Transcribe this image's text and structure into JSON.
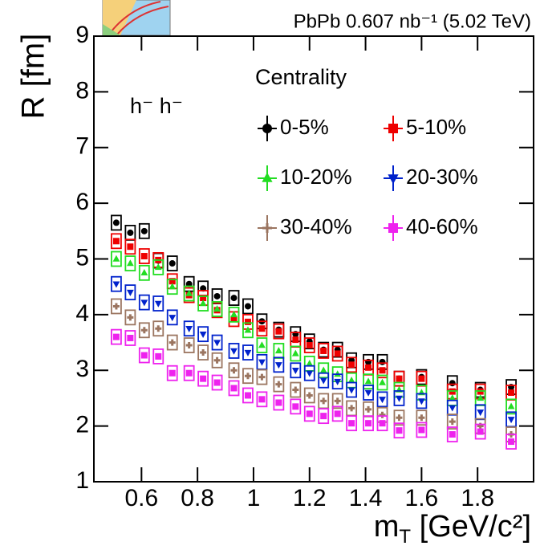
{
  "chart_data": {
    "type": "scatter",
    "header": "PbPb 0.607 nb⁻¹ (5.02 TeV)",
    "annotation": "h⁻ h⁻",
    "y_label": "R [fm]",
    "x_label": {
      "main": "m",
      "sub": "T",
      "rest": " [GeV/c²]"
    },
    "legend_title": "Centrality",
    "x": [
      0.51,
      0.56,
      0.61,
      0.66,
      0.71,
      0.77,
      0.82,
      0.87,
      0.93,
      0.98,
      1.03,
      1.09,
      1.15,
      1.2,
      1.25,
      1.3,
      1.35,
      1.41,
      1.46,
      1.52,
      1.6,
      1.71,
      1.81,
      1.92
    ],
    "series": [
      {
        "name": "0-5%",
        "color": "#000000",
        "marker": "circle",
        "values": [
          5.65,
          5.47,
          5.5,
          4.97,
          4.92,
          4.55,
          4.47,
          4.33,
          4.3,
          4.15,
          3.88,
          3.73,
          3.65,
          3.52,
          3.37,
          3.37,
          3.18,
          3.15,
          3.15,
          2.85,
          2.88,
          2.77,
          2.65,
          2.7
        ]
      },
      {
        "name": "5-10%",
        "color": "#ee0000",
        "marker": "square",
        "values": [
          5.32,
          5.22,
          5.05,
          4.98,
          4.6,
          4.35,
          4.3,
          4.08,
          3.92,
          3.87,
          3.75,
          3.7,
          3.55,
          3.45,
          3.35,
          3.3,
          3.1,
          3.05,
          3.0,
          2.85,
          2.85,
          2.62,
          2.62,
          2.6
        ]
      },
      {
        "name": "10-20%",
        "color": "#22dd22",
        "marker": "triangle-up",
        "values": [
          5.0,
          4.92,
          4.75,
          4.85,
          4.5,
          4.38,
          4.2,
          4.1,
          4.0,
          3.72,
          3.45,
          3.35,
          3.3,
          3.12,
          3.0,
          2.93,
          2.82,
          2.8,
          2.78,
          2.65,
          2.6,
          2.5,
          2.5,
          2.35
        ]
      },
      {
        "name": "20-30%",
        "color": "#0022cc",
        "marker": "triangle-down",
        "values": [
          4.55,
          4.4,
          4.22,
          4.2,
          3.95,
          3.75,
          3.65,
          3.5,
          3.35,
          3.32,
          3.15,
          3.1,
          3.0,
          2.95,
          2.82,
          2.8,
          2.65,
          2.6,
          2.48,
          2.5,
          2.45,
          2.33,
          2.25,
          2.12
        ]
      },
      {
        "name": "30-40%",
        "color": "#9b7560",
        "marker": "cross",
        "values": [
          4.15,
          3.95,
          3.72,
          3.75,
          3.5,
          3.45,
          3.32,
          3.18,
          3.0,
          2.9,
          2.88,
          2.75,
          2.65,
          2.55,
          2.45,
          2.45,
          2.32,
          2.3,
          2.2,
          2.15,
          2.15,
          2.08,
          2.0,
          1.85
        ]
      },
      {
        "name": "40-60%",
        "color": "#ee22ee",
        "marker": "square",
        "values": [
          3.6,
          3.58,
          3.27,
          3.25,
          2.95,
          2.95,
          2.85,
          2.78,
          2.68,
          2.55,
          2.48,
          2.42,
          2.35,
          2.22,
          2.18,
          2.22,
          2.05,
          2.05,
          2.05,
          1.92,
          1.93,
          1.85,
          1.9,
          1.72
        ]
      }
    ],
    "xlim": [
      0.43,
      2.0
    ],
    "xticks": [
      0.6,
      0.8,
      1,
      1.2,
      1.4,
      1.6,
      1.8
    ],
    "ylim": [
      1,
      9
    ],
    "yticks": [
      1,
      2,
      3,
      4,
      5,
      6,
      7,
      8,
      9
    ]
  }
}
